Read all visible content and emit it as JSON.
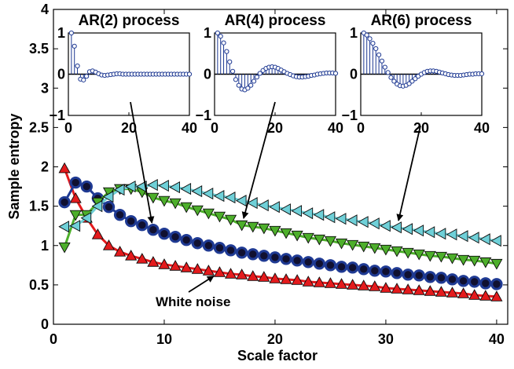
{
  "chart_data": [
    {
      "type": "scatter",
      "xlabel": "Scale factor",
      "ylabel": "Sample entropy",
      "xlim": [
        0,
        41
      ],
      "ylim": [
        0,
        4
      ],
      "xticks": [
        "0",
        "10",
        "20",
        "30",
        "40"
      ],
      "yticks": [
        "0",
        "0.5",
        "1",
        "1.5",
        "2",
        "2.5",
        "3",
        "3.5",
        "4"
      ],
      "grid": false,
      "annotation": "White noise",
      "series": [
        {
          "name": "White noise",
          "color": "#e41a1c",
          "marker": "triangle-up",
          "x": [
            1,
            2,
            3,
            4,
            5,
            6,
            7,
            8,
            9,
            10,
            11,
            12,
            13,
            14,
            15,
            16,
            17,
            18,
            19,
            20,
            21,
            22,
            23,
            24,
            25,
            26,
            27,
            28,
            29,
            30,
            31,
            32,
            33,
            34,
            35,
            36,
            37,
            38,
            39,
            40
          ],
          "values": [
            1.98,
            1.6,
            1.35,
            1.14,
            1.0,
            0.92,
            0.87,
            0.83,
            0.79,
            0.76,
            0.74,
            0.72,
            0.7,
            0.68,
            0.66,
            0.64,
            0.63,
            0.61,
            0.6,
            0.58,
            0.57,
            0.56,
            0.54,
            0.53,
            0.52,
            0.51,
            0.5,
            0.49,
            0.48,
            0.46,
            0.45,
            0.44,
            0.43,
            0.42,
            0.41,
            0.4,
            0.39,
            0.37,
            0.36,
            0.35
          ]
        },
        {
          "name": "AR(2) process",
          "color": "#1f3a93",
          "marker": "circle",
          "x": [
            1,
            2,
            3,
            4,
            5,
            6,
            7,
            8,
            9,
            10,
            11,
            12,
            13,
            14,
            15,
            16,
            17,
            18,
            19,
            20,
            21,
            22,
            23,
            24,
            25,
            26,
            27,
            28,
            29,
            30,
            31,
            32,
            33,
            34,
            35,
            36,
            37,
            38,
            39,
            40
          ],
          "values": [
            1.55,
            1.8,
            1.75,
            1.6,
            1.49,
            1.39,
            1.31,
            1.26,
            1.2,
            1.15,
            1.11,
            1.07,
            1.03,
            1.0,
            0.97,
            0.94,
            0.91,
            0.89,
            0.87,
            0.85,
            0.83,
            0.81,
            0.79,
            0.77,
            0.75,
            0.73,
            0.72,
            0.7,
            0.68,
            0.67,
            0.65,
            0.63,
            0.62,
            0.6,
            0.59,
            0.57,
            0.55,
            0.54,
            0.52,
            0.51
          ]
        },
        {
          "name": "AR(4) process",
          "color": "#4daf2b",
          "marker": "triangle-down",
          "x": [
            1,
            2,
            3,
            4,
            5,
            6,
            7,
            8,
            9,
            10,
            11,
            12,
            13,
            14,
            15,
            16,
            17,
            18,
            19,
            20,
            21,
            22,
            23,
            24,
            25,
            26,
            27,
            28,
            29,
            30,
            31,
            32,
            33,
            34,
            35,
            36,
            37,
            38,
            39,
            40
          ],
          "values": [
            0.98,
            1.39,
            1.39,
            1.55,
            1.68,
            1.72,
            1.72,
            1.68,
            1.61,
            1.57,
            1.54,
            1.49,
            1.45,
            1.41,
            1.37,
            1.33,
            1.26,
            1.24,
            1.22,
            1.19,
            1.16,
            1.13,
            1.1,
            1.08,
            1.06,
            1.03,
            1.01,
            0.99,
            0.97,
            0.95,
            0.93,
            0.91,
            0.89,
            0.87,
            0.86,
            0.84,
            0.82,
            0.81,
            0.79,
            0.77
          ]
        },
        {
          "name": "AR(6) process",
          "color": "#6fd0d8",
          "marker": "triangle-left",
          "x": [
            1,
            2,
            3,
            4,
            5,
            6,
            7,
            8,
            9,
            10,
            11,
            12,
            13,
            14,
            15,
            16,
            17,
            18,
            19,
            20,
            21,
            22,
            23,
            24,
            25,
            26,
            27,
            28,
            29,
            30,
            31,
            32,
            33,
            34,
            35,
            36,
            37,
            38,
            39,
            40
          ],
          "values": [
            1.24,
            1.25,
            1.35,
            1.5,
            1.62,
            1.71,
            1.75,
            1.75,
            1.77,
            1.76,
            1.74,
            1.72,
            1.69,
            1.66,
            1.63,
            1.61,
            1.57,
            1.54,
            1.51,
            1.49,
            1.46,
            1.44,
            1.41,
            1.39,
            1.36,
            1.34,
            1.32,
            1.3,
            1.28,
            1.25,
            1.23,
            1.21,
            1.19,
            1.17,
            1.15,
            1.14,
            1.12,
            1.1,
            1.08,
            1.06
          ]
        }
      ],
      "callouts": [
        {
          "from": "AR(2) process",
          "series_index": 1,
          "point_x": 9
        },
        {
          "from": "AR(4) process",
          "series_index": 2,
          "point_x": 17
        },
        {
          "from": "AR(6) process",
          "series_index": 3,
          "point_x": 31
        },
        {
          "from": "White noise",
          "series_index": 0,
          "point_x": 15
        }
      ]
    },
    {
      "type": "stem",
      "title": "AR(2) process",
      "xlim": [
        0,
        40
      ],
      "ylim": [
        -1,
        1
      ],
      "xticks": [
        "0",
        "20",
        "40"
      ],
      "yticks": [
        "−1",
        "0",
        "1"
      ],
      "color": "#1f3a93",
      "x": [
        1,
        2,
        3,
        4,
        5,
        6,
        7,
        8,
        9,
        10,
        11,
        12,
        13,
        14,
        15,
        16,
        17,
        18,
        19,
        20,
        21,
        22,
        23,
        24,
        25,
        26,
        27,
        28,
        29,
        30,
        31,
        32,
        33,
        34,
        35,
        36,
        37,
        38,
        39,
        40
      ],
      "values": [
        1.0,
        0.68,
        0.2,
        -0.12,
        -0.14,
        -0.05,
        0.06,
        0.08,
        0.05,
        0.01,
        -0.02,
        -0.03,
        -0.02,
        -0.01,
        0.0,
        0.01,
        0.01,
        0.0,
        0.0,
        0.0,
        0.0,
        0.0,
        0.0,
        0.0,
        0.0,
        0.0,
        0.0,
        0.0,
        0.0,
        0.0,
        0.0,
        0.0,
        0.0,
        0.0,
        0.0,
        0.0,
        0.0,
        0.0,
        0.0,
        0.0
      ]
    },
    {
      "type": "stem",
      "title": "AR(4) process",
      "xlim": [
        0,
        40
      ],
      "ylim": [
        -1,
        1
      ],
      "xticks": [
        "0",
        "20",
        "40"
      ],
      "yticks": [
        "−1",
        "0",
        "1"
      ],
      "color": "#1f3a93",
      "x": [
        1,
        2,
        3,
        4,
        5,
        6,
        7,
        8,
        9,
        10,
        11,
        12,
        13,
        14,
        15,
        16,
        17,
        18,
        19,
        20,
        21,
        22,
        23,
        24,
        25,
        26,
        27,
        28,
        29,
        30,
        31,
        32,
        33,
        34,
        35,
        36,
        37,
        38,
        39,
        40
      ],
      "values": [
        1.0,
        0.92,
        0.76,
        0.55,
        0.3,
        0.07,
        -0.13,
        -0.27,
        -0.36,
        -0.38,
        -0.34,
        -0.27,
        -0.17,
        -0.07,
        0.02,
        0.09,
        0.14,
        0.17,
        0.18,
        0.17,
        0.14,
        0.1,
        0.06,
        0.02,
        -0.01,
        -0.04,
        -0.06,
        -0.07,
        -0.07,
        -0.06,
        -0.05,
        -0.03,
        -0.02,
        0.0,
        0.01,
        0.02,
        0.03,
        0.03,
        0.03,
        0.02
      ]
    },
    {
      "type": "stem",
      "title": "AR(6) process",
      "xlim": [
        0,
        40
      ],
      "ylim": [
        -1,
        1
      ],
      "xticks": [
        "0",
        "20",
        "40"
      ],
      "yticks": [
        "−1",
        "0",
        "1"
      ],
      "color": "#1f3a93",
      "x": [
        1,
        2,
        3,
        4,
        5,
        6,
        7,
        8,
        9,
        10,
        11,
        12,
        13,
        14,
        15,
        16,
        17,
        18,
        19,
        20,
        21,
        22,
        23,
        24,
        25,
        26,
        27,
        28,
        29,
        30,
        31,
        32,
        33,
        34,
        35,
        36,
        37,
        38,
        39,
        40
      ],
      "values": [
        1.0,
        0.95,
        0.86,
        0.75,
        0.62,
        0.47,
        0.32,
        0.17,
        0.04,
        -0.08,
        -0.17,
        -0.24,
        -0.28,
        -0.29,
        -0.27,
        -0.23,
        -0.17,
        -0.11,
        -0.05,
        0.0,
        0.04,
        0.07,
        0.08,
        0.08,
        0.07,
        0.05,
        0.03,
        0.01,
        -0.01,
        -0.02,
        -0.03,
        -0.03,
        -0.03,
        -0.02,
        -0.01,
        0.0,
        0.0,
        0.01,
        0.01,
        0.01
      ]
    }
  ]
}
